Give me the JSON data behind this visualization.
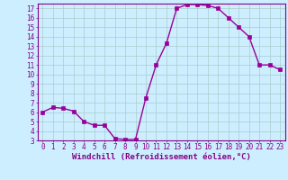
{
  "x": [
    0,
    1,
    2,
    3,
    4,
    5,
    6,
    7,
    8,
    9,
    10,
    11,
    12,
    13,
    14,
    15,
    16,
    17,
    18,
    19,
    20,
    21,
    22,
    23
  ],
  "y": [
    6.0,
    6.5,
    6.4,
    6.1,
    5.0,
    4.6,
    4.6,
    3.2,
    3.1,
    3.1,
    7.5,
    11.0,
    13.3,
    17.0,
    17.4,
    17.4,
    17.3,
    17.0,
    16.0,
    15.0,
    14.0,
    11.0,
    11.0,
    10.5
  ],
  "line_color": "#990099",
  "marker_color": "#990099",
  "bg_color": "#cceeff",
  "grid_color": "#aacccc",
  "axis_color": "#880088",
  "xlabel": "Windchill (Refroidissement éolien,°C)",
  "xlim": [
    -0.5,
    23.5
  ],
  "ylim": [
    3,
    17.5
  ],
  "yticks": [
    3,
    4,
    5,
    6,
    7,
    8,
    9,
    10,
    11,
    12,
    13,
    14,
    15,
    16,
    17
  ],
  "xticks": [
    0,
    1,
    2,
    3,
    4,
    5,
    6,
    7,
    8,
    9,
    10,
    11,
    12,
    13,
    14,
    15,
    16,
    17,
    18,
    19,
    20,
    21,
    22,
    23
  ],
  "tick_fontsize": 5.5,
  "xlabel_fontsize": 6.5,
  "marker_size": 2.5,
  "line_width": 1.0
}
